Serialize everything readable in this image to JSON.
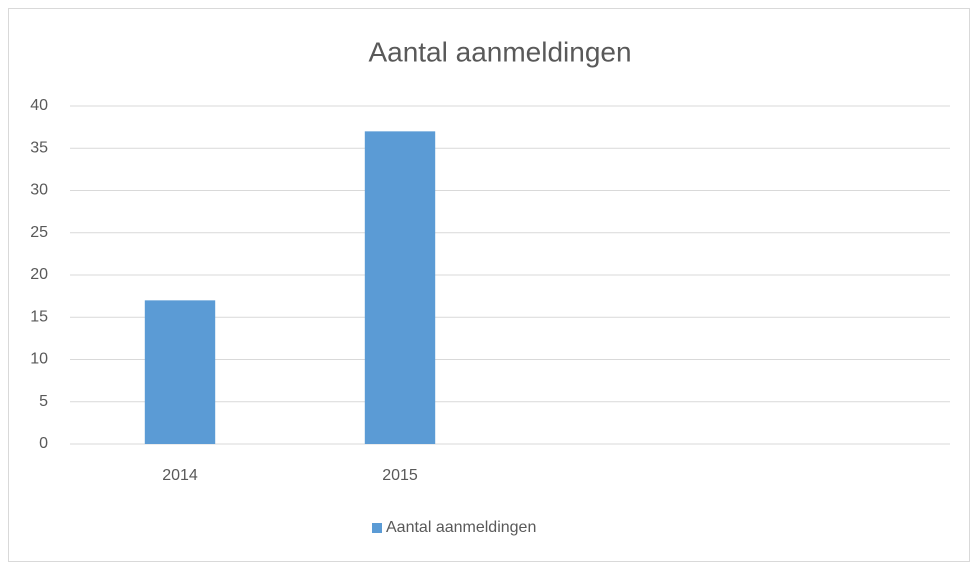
{
  "chart_data": {
    "type": "bar",
    "title": "Aantal aanmeldingen",
    "categories": [
      "2014",
      "2015",
      null,
      null
    ],
    "series": [
      {
        "name": "Aantal aanmeldingen",
        "color": "#5b9bd5",
        "values": [
          17,
          37,
          null,
          null
        ]
      }
    ],
    "ylim": [
      0,
      40
    ],
    "yticks": [
      0,
      5,
      10,
      15,
      20,
      25,
      30,
      35,
      40
    ],
    "grid": true,
    "legend": "bottom"
  }
}
